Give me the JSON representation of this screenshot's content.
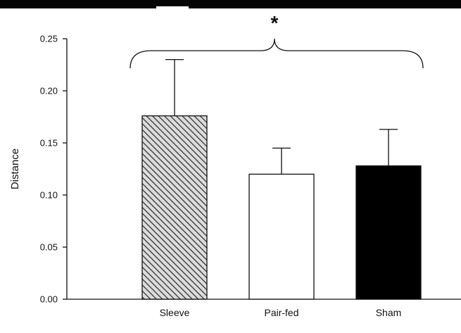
{
  "chart_data": {
    "type": "bar",
    "title": "",
    "xlabel": "",
    "ylabel": "Distance",
    "ylim": [
      0,
      0.25
    ],
    "yticks": [
      "0.00",
      "0.05",
      "0.10",
      "0.15",
      "0.20",
      "0.25"
    ],
    "categories": [
      "Sleeve",
      "Pair-fed",
      "Sham"
    ],
    "values": [
      0.176,
      0.12,
      0.128
    ],
    "error_upper": [
      0.23,
      0.145,
      0.163
    ],
    "bar_fills": [
      "hatched",
      "#ffffff",
      "#000000"
    ],
    "annotation": "*",
    "grid": false,
    "legend": "none"
  }
}
